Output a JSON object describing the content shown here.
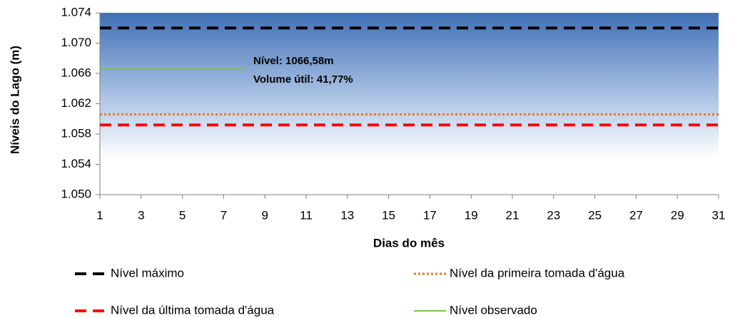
{
  "chart_data": {
    "type": "line",
    "ylabel": "Níveis do Lago (m)",
    "xlabel": "Dias do mês",
    "annotations": [
      "Nível: 1066,58m",
      "Volume útil: 41,77%"
    ],
    "x": [
      1,
      2,
      3,
      4,
      5,
      6,
      7,
      8,
      9,
      10,
      11,
      12,
      13,
      14,
      15,
      16,
      17,
      18,
      19,
      20,
      21,
      22,
      23,
      24,
      25,
      26,
      27,
      28,
      29,
      30,
      31
    ],
    "xlim": [
      1,
      31
    ],
    "xticks": [
      1,
      3,
      5,
      7,
      9,
      11,
      13,
      15,
      17,
      19,
      21,
      23,
      25,
      27,
      29,
      31
    ],
    "ylim": [
      1050,
      1074
    ],
    "yticks": [
      {
        "value": 1050,
        "label": "1.050"
      },
      {
        "value": 1054,
        "label": "1.054"
      },
      {
        "value": 1058,
        "label": "1.058"
      },
      {
        "value": 1062,
        "label": "1.062"
      },
      {
        "value": 1066,
        "label": "1.066"
      },
      {
        "value": 1070,
        "label": "1.070"
      },
      {
        "value": 1074,
        "label": "1.074"
      }
    ],
    "series": [
      {
        "name": "Nível máximo",
        "color": "#000000",
        "style": "dashed",
        "values": [
          1072,
          1072,
          1072,
          1072,
          1072,
          1072,
          1072,
          1072,
          1072,
          1072,
          1072,
          1072,
          1072,
          1072,
          1072,
          1072,
          1072,
          1072,
          1072,
          1072,
          1072,
          1072,
          1072,
          1072,
          1072,
          1072,
          1072,
          1072,
          1072,
          1072,
          1072
        ]
      },
      {
        "name": "Nível da primeira tomada d'água",
        "color": "#e87722",
        "style": "dotted",
        "values": [
          1060.6,
          1060.6,
          1060.6,
          1060.6,
          1060.6,
          1060.6,
          1060.6,
          1060.6,
          1060.6,
          1060.6,
          1060.6,
          1060.6,
          1060.6,
          1060.6,
          1060.6,
          1060.6,
          1060.6,
          1060.6,
          1060.6,
          1060.6,
          1060.6,
          1060.6,
          1060.6,
          1060.6,
          1060.6,
          1060.6,
          1060.6,
          1060.6,
          1060.6,
          1060.6,
          1060.6
        ]
      },
      {
        "name": "Nível da última tomada d'água",
        "color": "#ff0000",
        "style": "dashed",
        "values": [
          1059.2,
          1059.2,
          1059.2,
          1059.2,
          1059.2,
          1059.2,
          1059.2,
          1059.2,
          1059.2,
          1059.2,
          1059.2,
          1059.2,
          1059.2,
          1059.2,
          1059.2,
          1059.2,
          1059.2,
          1059.2,
          1059.2,
          1059.2,
          1059.2,
          1059.2,
          1059.2,
          1059.2,
          1059.2,
          1059.2,
          1059.2,
          1059.2,
          1059.2,
          1059.2,
          1059.2
        ]
      },
      {
        "name": "Nível observado",
        "color": "#7dc242",
        "style": "solid",
        "values": [
          1066.58,
          1066.58,
          1066.58,
          1066.58,
          1066.58,
          1066.58,
          1066.58,
          1066.58,
          null,
          null,
          null,
          null,
          null,
          null,
          null,
          null,
          null,
          null,
          null,
          null,
          null,
          null,
          null,
          null,
          null,
          null,
          null,
          null,
          null,
          null,
          null
        ]
      }
    ],
    "legend_order": [
      0,
      1,
      2,
      3
    ]
  }
}
